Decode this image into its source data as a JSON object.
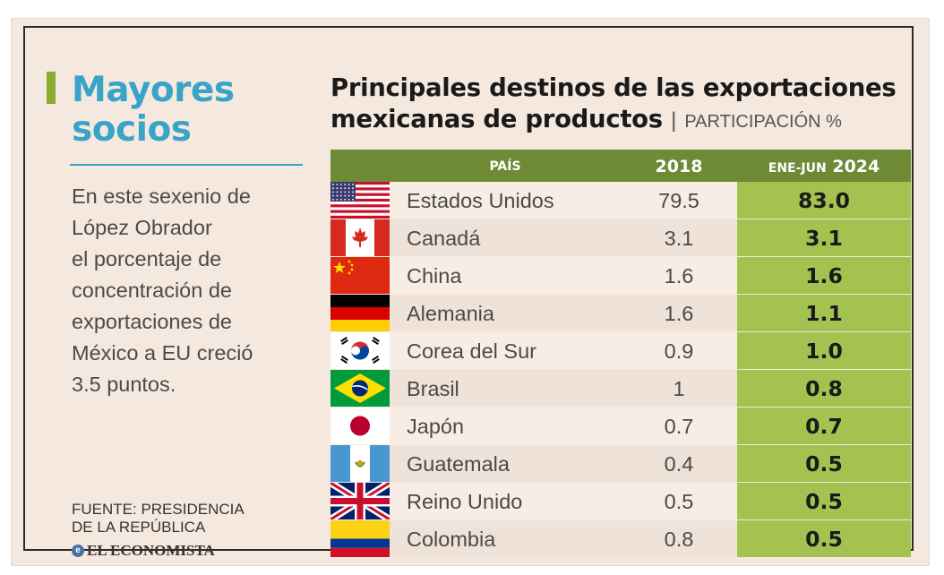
{
  "colors": {
    "accent_teal": "#3aa3c8",
    "accent_olive": "#8aab2f",
    "header_green": "#6e8a34",
    "highlight_green": "#a3c24f",
    "row_light": "#f7ede5",
    "row_alt": "#efe2d8",
    "frame_bg": "#f5e9df"
  },
  "sidebar": {
    "headline_line1": "Mayores",
    "headline_line2": "socios",
    "body_line1": "En este sexenio de",
    "body_line2": "López Obrador",
    "body_line3": "el porcentaje de",
    "body_line4": "concentración de",
    "body_line5": "exportaciones de",
    "body_line6": "México a EU creció",
    "body_line7": "3.5 puntos.",
    "source_line1": "FUENTE: PRESIDENCIA",
    "source_line2": "DE LA REPÚBLICA",
    "logo_icon": "e-icon",
    "logo_text": "EL ECONOMISTA"
  },
  "chart_data": {
    "type": "table",
    "title_line1": "Principales destinos de las exportaciones",
    "title_line2": "mexicanas de productos",
    "subtitle_sep": "|",
    "subtitle": "PARTICIPACIÓN %",
    "columns": {
      "country": "PAÍS",
      "y2018": "2018",
      "y2024_prefix": "ENE-JUN",
      "y2024_year": "2024"
    },
    "rows": [
      {
        "flag": "usa-flag-icon",
        "country": "Estados Unidos",
        "y2018": "79.5",
        "y2024": "83.0"
      },
      {
        "flag": "canada-flag-icon",
        "country": "Canadá",
        "y2018": "3.1",
        "y2024": "3.1"
      },
      {
        "flag": "china-flag-icon",
        "country": "China",
        "y2018": "1.6",
        "y2024": "1.6"
      },
      {
        "flag": "germany-flag-icon",
        "country": "Alemania",
        "y2018": "1.6",
        "y2024": "1.1"
      },
      {
        "flag": "south-korea-flag-icon",
        "country": "Corea del Sur",
        "y2018": "0.9",
        "y2024": "1.0"
      },
      {
        "flag": "brazil-flag-icon",
        "country": "Brasil",
        "y2018": "1",
        "y2024": "0.8"
      },
      {
        "flag": "japan-flag-icon",
        "country": "Japón",
        "y2018": "0.7",
        "y2024": "0.7"
      },
      {
        "flag": "guatemala-flag-icon",
        "country": "Guatemala",
        "y2018": "0.4",
        "y2024": "0.5"
      },
      {
        "flag": "uk-flag-icon",
        "country": "Reino Unido",
        "y2018": "0.5",
        "y2024": "0.5"
      },
      {
        "flag": "colombia-flag-icon",
        "country": "Colombia",
        "y2018": "0.8",
        "y2024": "0.5"
      }
    ]
  }
}
